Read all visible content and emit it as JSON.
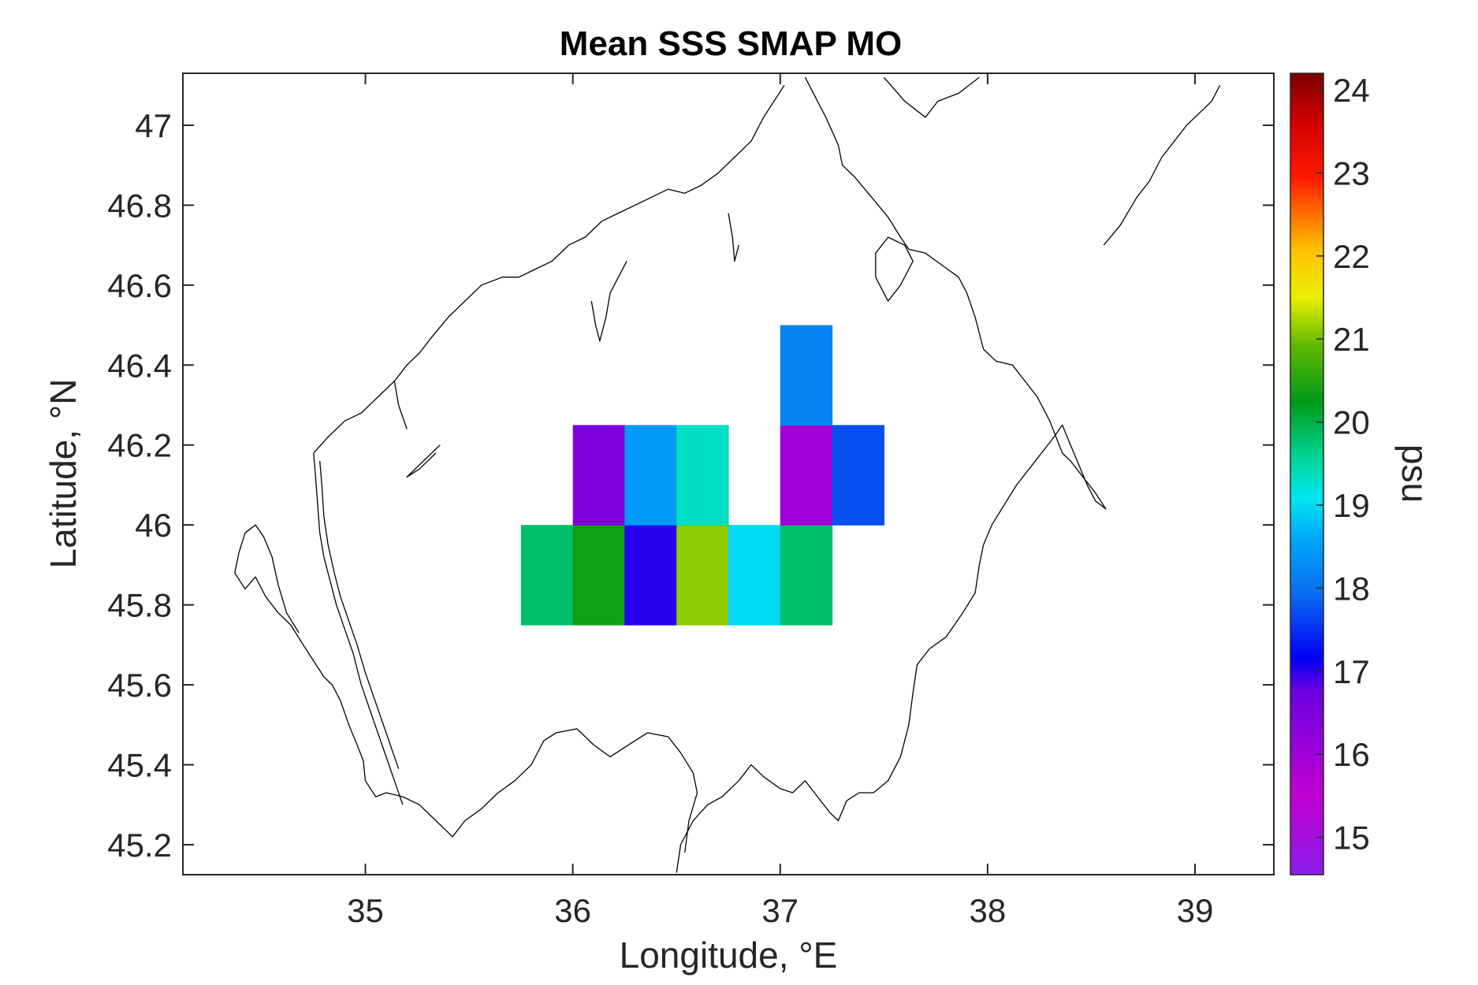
{
  "chart_data": {
    "type": "heatmap",
    "title": "Mean SSS SMAP MO",
    "xlabel": "Longitude, °E",
    "ylabel": "Latitude, °N",
    "xlim": [
      34.12,
      39.38
    ],
    "ylim": [
      45.125,
      47.13
    ],
    "xticks": [
      "35",
      "36",
      "37",
      "38",
      "39"
    ],
    "yticks": [
      "45.2",
      "45.4",
      "45.6",
      "45.8",
      "46",
      "46.2",
      "46.4",
      "46.6",
      "46.8",
      "47"
    ],
    "colorbar": {
      "label": "psu",
      "range": [
        14.55,
        24.2
      ],
      "ticks": [
        "15",
        "16",
        "17",
        "18",
        "19",
        "20",
        "21",
        "22",
        "23",
        "24"
      ]
    },
    "cell_size_deg": [
      0.25,
      0.25
    ],
    "cells": [
      {
        "lon": 35.875,
        "lat": 45.875,
        "value": 19.8
      },
      {
        "lon": 36.125,
        "lat": 45.875,
        "value": 20.35
      },
      {
        "lon": 36.375,
        "lat": 45.875,
        "value": 17.05
      },
      {
        "lon": 36.625,
        "lat": 45.875,
        "value": 21.1
      },
      {
        "lon": 36.875,
        "lat": 45.875,
        "value": 18.95
      },
      {
        "lon": 37.125,
        "lat": 45.875,
        "value": 19.8
      },
      {
        "lon": 36.125,
        "lat": 46.125,
        "value": 16.5
      },
      {
        "lon": 36.375,
        "lat": 46.125,
        "value": 18.45
      },
      {
        "lon": 36.625,
        "lat": 46.125,
        "value": 19.3
      },
      {
        "lon": 37.125,
        "lat": 46.125,
        "value": 15.95
      },
      {
        "lon": 37.375,
        "lat": 46.125,
        "value": 17.75
      },
      {
        "lon": 37.125,
        "lat": 46.375,
        "value": 18.2
      }
    ],
    "coastline": [
      [
        [
          34.68,
          45.73
        ],
        [
          34.62,
          45.78
        ],
        [
          34.58,
          45.85
        ],
        [
          34.55,
          45.92
        ],
        [
          34.51,
          45.97
        ],
        [
          34.47,
          46.0
        ],
        [
          34.42,
          45.98
        ],
        [
          34.39,
          45.93
        ],
        [
          34.37,
          45.88
        ],
        [
          34.42,
          45.84
        ],
        [
          34.47,
          45.87
        ],
        [
          34.52,
          45.82
        ],
        [
          34.58,
          45.78
        ],
        [
          34.64,
          45.75
        ],
        [
          34.7,
          45.7
        ],
        [
          34.75,
          45.66
        ],
        [
          34.8,
          45.62
        ],
        [
          34.84,
          45.6
        ],
        [
          34.88,
          45.56
        ],
        [
          34.92,
          45.5
        ],
        [
          34.96,
          45.45
        ],
        [
          34.99,
          45.41
        ],
        [
          35.0,
          45.36
        ],
        [
          35.05,
          45.32
        ],
        [
          35.1,
          45.33
        ],
        [
          35.18,
          45.32
        ],
        [
          35.26,
          45.3
        ],
        [
          35.34,
          45.26
        ],
        [
          35.42,
          45.22
        ],
        [
          35.48,
          45.26
        ],
        [
          35.56,
          45.29
        ],
        [
          35.64,
          45.33
        ],
        [
          35.72,
          45.36
        ],
        [
          35.8,
          45.4
        ],
        [
          35.86,
          45.46
        ],
        [
          35.92,
          45.48
        ],
        [
          36.02,
          45.49
        ],
        [
          36.1,
          45.45
        ],
        [
          36.18,
          45.42
        ],
        [
          36.27,
          45.45
        ],
        [
          36.36,
          45.48
        ],
        [
          36.46,
          45.47
        ],
        [
          36.52,
          45.43
        ],
        [
          36.58,
          45.38
        ],
        [
          36.6,
          45.33
        ],
        [
          36.56,
          45.26
        ],
        [
          36.54,
          45.18
        ]
      ],
      [
        [
          36.5,
          45.13
        ],
        [
          36.52,
          45.2
        ],
        [
          36.58,
          45.26
        ],
        [
          36.65,
          45.3
        ],
        [
          36.72,
          45.32
        ],
        [
          36.8,
          45.36
        ],
        [
          36.86,
          45.4
        ],
        [
          36.92,
          45.37
        ],
        [
          37.0,
          45.34
        ],
        [
          37.06,
          45.33
        ],
        [
          37.12,
          45.36
        ],
        [
          37.18,
          45.32
        ],
        [
          37.24,
          45.28
        ],
        [
          37.28,
          45.26
        ],
        [
          37.32,
          45.31
        ],
        [
          37.38,
          45.33
        ],
        [
          37.45,
          45.33
        ],
        [
          37.52,
          45.36
        ],
        [
          37.58,
          45.42
        ],
        [
          37.62,
          45.5
        ],
        [
          37.64,
          45.58
        ],
        [
          37.66,
          45.65
        ],
        [
          37.72,
          45.69
        ],
        [
          37.8,
          45.72
        ],
        [
          37.88,
          45.78
        ],
        [
          37.94,
          45.83
        ],
        [
          37.96,
          45.9
        ],
        [
          37.98,
          45.95
        ],
        [
          38.02,
          46.0
        ],
        [
          38.08,
          46.05
        ],
        [
          38.14,
          46.1
        ],
        [
          38.2,
          46.14
        ],
        [
          38.26,
          46.18
        ],
        [
          38.32,
          46.22
        ],
        [
          38.36,
          46.25
        ],
        [
          38.4,
          46.2
        ],
        [
          38.44,
          46.15
        ],
        [
          38.48,
          46.1
        ],
        [
          38.52,
          46.06
        ],
        [
          38.57,
          46.04
        ],
        [
          38.52,
          46.08
        ],
        [
          38.46,
          46.12
        ],
        [
          38.4,
          46.16
        ],
        [
          38.36,
          46.18
        ],
        [
          38.3,
          46.26
        ],
        [
          38.24,
          46.32
        ],
        [
          38.18,
          46.36
        ],
        [
          38.12,
          46.4
        ],
        [
          38.04,
          46.41
        ],
        [
          37.98,
          46.44
        ],
        [
          37.94,
          46.52
        ],
        [
          37.9,
          46.58
        ],
        [
          37.86,
          46.62
        ],
        [
          37.78,
          46.65
        ],
        [
          37.7,
          46.68
        ],
        [
          37.62,
          46.69
        ],
        [
          37.58,
          46.72
        ],
        [
          37.52,
          46.77
        ],
        [
          37.44,
          46.82
        ],
        [
          37.36,
          46.87
        ],
        [
          37.3,
          46.9
        ],
        [
          37.28,
          46.95
        ],
        [
          37.22,
          47.02
        ],
        [
          37.16,
          47.08
        ],
        [
          37.12,
          47.12
        ]
      ],
      [
        [
          37.5,
          47.12
        ],
        [
          37.6,
          47.06
        ],
        [
          37.7,
          47.02
        ],
        [
          37.76,
          47.06
        ],
        [
          37.86,
          47.08
        ],
        [
          37.96,
          47.12
        ]
      ],
      [
        [
          37.46,
          46.62
        ],
        [
          37.52,
          46.56
        ],
        [
          37.58,
          46.6
        ],
        [
          37.64,
          46.66
        ],
        [
          37.6,
          46.7
        ],
        [
          37.52,
          46.72
        ],
        [
          37.46,
          46.68
        ],
        [
          37.46,
          46.62
        ]
      ],
      [
        [
          38.56,
          46.7
        ],
        [
          38.64,
          46.75
        ],
        [
          38.72,
          46.82
        ],
        [
          38.78,
          46.86
        ],
        [
          38.84,
          46.92
        ],
        [
          38.9,
          46.96
        ],
        [
          38.96,
          47.0
        ],
        [
          39.02,
          47.03
        ],
        [
          39.08,
          47.06
        ],
        [
          39.12,
          47.1
        ]
      ],
      [
        [
          34.75,
          46.18
        ],
        [
          34.76,
          46.12
        ],
        [
          34.77,
          46.05
        ],
        [
          34.78,
          45.98
        ],
        [
          34.8,
          45.92
        ],
        [
          34.83,
          45.86
        ],
        [
          34.86,
          45.8
        ],
        [
          34.9,
          45.74
        ],
        [
          34.94,
          45.68
        ],
        [
          34.98,
          45.6
        ],
        [
          35.02,
          45.54
        ],
        [
          35.06,
          45.48
        ],
        [
          35.1,
          45.42
        ],
        [
          35.14,
          45.36
        ],
        [
          35.18,
          45.3
        ]
      ],
      [
        [
          34.78,
          46.16
        ],
        [
          34.79,
          46.1
        ],
        [
          34.8,
          46.02
        ],
        [
          34.82,
          45.95
        ],
        [
          34.85,
          45.88
        ],
        [
          34.88,
          45.82
        ],
        [
          34.92,
          45.76
        ],
        [
          34.96,
          45.7
        ],
        [
          35.0,
          45.63
        ],
        [
          35.04,
          45.57
        ],
        [
          35.08,
          45.51
        ],
        [
          35.12,
          45.45
        ],
        [
          35.16,
          45.39
        ]
      ],
      [
        [
          34.75,
          46.18
        ],
        [
          34.82,
          46.22
        ],
        [
          34.9,
          46.26
        ],
        [
          34.98,
          46.28
        ],
        [
          35.06,
          46.32
        ],
        [
          35.14,
          46.36
        ],
        [
          35.2,
          46.4
        ],
        [
          35.26,
          46.43
        ],
        [
          35.32,
          46.47
        ],
        [
          35.4,
          46.52
        ],
        [
          35.48,
          46.56
        ],
        [
          35.56,
          46.6
        ],
        [
          35.66,
          46.62
        ],
        [
          35.74,
          46.62
        ],
        [
          35.82,
          46.64
        ],
        [
          35.9,
          46.66
        ],
        [
          35.98,
          46.7
        ],
        [
          36.06,
          46.72
        ],
        [
          36.14,
          46.76
        ],
        [
          36.22,
          46.78
        ],
        [
          36.3,
          46.8
        ],
        [
          36.38,
          46.82
        ],
        [
          36.46,
          46.84
        ],
        [
          36.54,
          46.83
        ],
        [
          36.62,
          46.85
        ],
        [
          36.7,
          46.88
        ],
        [
          36.78,
          46.92
        ],
        [
          36.86,
          46.96
        ],
        [
          36.92,
          47.02
        ],
        [
          36.97,
          47.06
        ],
        [
          37.02,
          47.1
        ]
      ],
      [
        [
          36.09,
          46.56
        ],
        [
          36.11,
          46.5
        ],
        [
          36.13,
          46.46
        ],
        [
          36.16,
          46.52
        ],
        [
          36.18,
          46.58
        ],
        [
          36.22,
          46.62
        ],
        [
          36.26,
          46.66
        ]
      ],
      [
        [
          36.75,
          46.78
        ],
        [
          36.77,
          46.72
        ],
        [
          36.78,
          46.66
        ],
        [
          36.8,
          46.7
        ]
      ],
      [
        [
          35.2,
          46.24
        ],
        [
          35.16,
          46.3
        ],
        [
          35.14,
          46.36
        ]
      ],
      [
        [
          35.36,
          46.2
        ],
        [
          35.28,
          46.16
        ],
        [
          35.2,
          46.12
        ],
        [
          35.26,
          46.14
        ],
        [
          35.34,
          46.18
        ]
      ]
    ]
  }
}
